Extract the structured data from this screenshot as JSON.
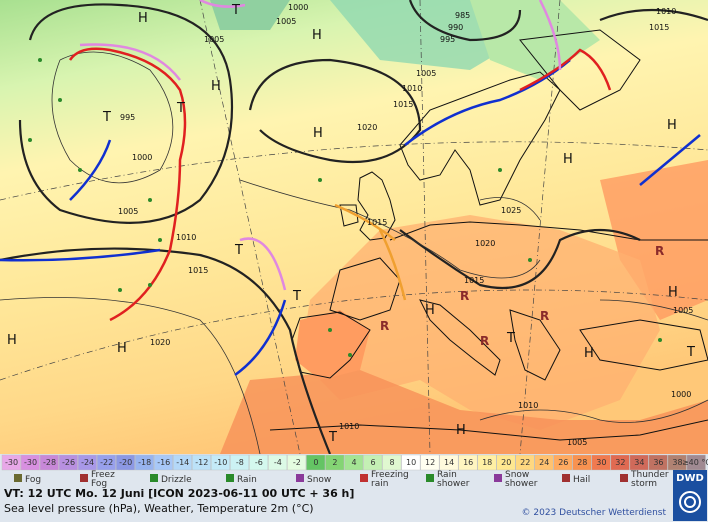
{
  "map": {
    "pressure_labels": [
      "1000",
      "1005",
      "985",
      "990",
      "995",
      "1005",
      "1010",
      "1015",
      "1020",
      "1010",
      "1015",
      "1005",
      "995",
      "1000",
      "1005",
      "1010",
      "1015",
      "1020",
      "1015",
      "1025",
      "1020",
      "1015",
      "1005",
      "1010",
      "1010",
      "1005",
      "1000"
    ],
    "centers": [
      "H",
      "H",
      "H",
      "H",
      "H",
      "H",
      "H",
      "H",
      "H",
      "H",
      "H",
      "H",
      "T",
      "T",
      "T",
      "T",
      "T",
      "T",
      "T",
      "T"
    ]
  },
  "legend": {
    "scale": [
      {
        "label": "-30",
        "color": "#e8a8e8"
      },
      {
        "label": "-30",
        "color": "#d890e0"
      },
      {
        "label": "-28",
        "color": "#c888d8"
      },
      {
        "label": "-26",
        "color": "#b890e0"
      },
      {
        "label": "-24",
        "color": "#a898e8"
      },
      {
        "label": "-22",
        "color": "#98a0ec"
      },
      {
        "label": "-20",
        "color": "#8c98e4"
      },
      {
        "label": "-18",
        "color": "#98b4f0"
      },
      {
        "label": "-16",
        "color": "#a8c8f8"
      },
      {
        "label": "-14",
        "color": "#b4d8f8"
      },
      {
        "label": "-12",
        "color": "#bce2f8"
      },
      {
        "label": "-10",
        "color": "#c4eaf8"
      },
      {
        "label": "-8",
        "color": "#ccf2f4"
      },
      {
        "label": "-6",
        "color": "#d4f8ee"
      },
      {
        "label": "-4",
        "color": "#dcfae6"
      },
      {
        "label": "-2",
        "color": "#e4fce0"
      },
      {
        "label": "0",
        "color": "#64c464"
      },
      {
        "label": "2",
        "color": "#84d474"
      },
      {
        "label": "4",
        "color": "#a4e494"
      },
      {
        "label": "6",
        "color": "#c4f0b4"
      },
      {
        "label": "8",
        "color": "#e0f8d0"
      },
      {
        "label": "10",
        "color": "#ffffff"
      },
      {
        "label": "12",
        "color": "#fffff0"
      },
      {
        "label": "14",
        "color": "#fffadc"
      },
      {
        "label": "16",
        "color": "#fff5c0"
      },
      {
        "label": "18",
        "color": "#fff0a4"
      },
      {
        "label": "20",
        "color": "#ffe890"
      },
      {
        "label": "22",
        "color": "#ffd880"
      },
      {
        "label": "24",
        "color": "#ffc270"
      },
      {
        "label": "26",
        "color": "#ffaa60"
      },
      {
        "label": "28",
        "color": "#f89250"
      },
      {
        "label": "30",
        "color": "#f07a50"
      },
      {
        "label": "32",
        "color": "#e06a52"
      },
      {
        "label": "34",
        "color": "#d06a5a"
      },
      {
        "label": "36",
        "color": "#c07262"
      },
      {
        "label": "38",
        "color": "#b08272"
      },
      {
        "label": "≥40 °C",
        "color": "#a08a92"
      }
    ],
    "weather": [
      {
        "label": [
          "Fog"
        ]
      },
      {
        "label": [
          "Freez",
          "Fog"
        ]
      },
      {
        "label": [
          "Drizzle"
        ]
      },
      {
        "label": [
          "Rain"
        ]
      },
      {
        "label": [
          "Snow"
        ]
      },
      {
        "label": [
          "Freezing",
          "rain"
        ]
      },
      {
        "label": [
          "Rain",
          "shower"
        ]
      },
      {
        "label": [
          "Snow",
          "shower"
        ]
      },
      {
        "label": [
          "Hail"
        ]
      },
      {
        "label": [
          "Thunder",
          "storm"
        ]
      }
    ]
  },
  "footer": {
    "valid_time": "VT: 12 UTC Mo.  12 Juni [ICON 2023-06-11  00 UTC + 36 h]",
    "description": "Sea level pressure (hPa), Weather, Temperature 2m (°C)",
    "copyright": "© 2023 Deutscher Wetterdienst",
    "logo": "DWD"
  }
}
